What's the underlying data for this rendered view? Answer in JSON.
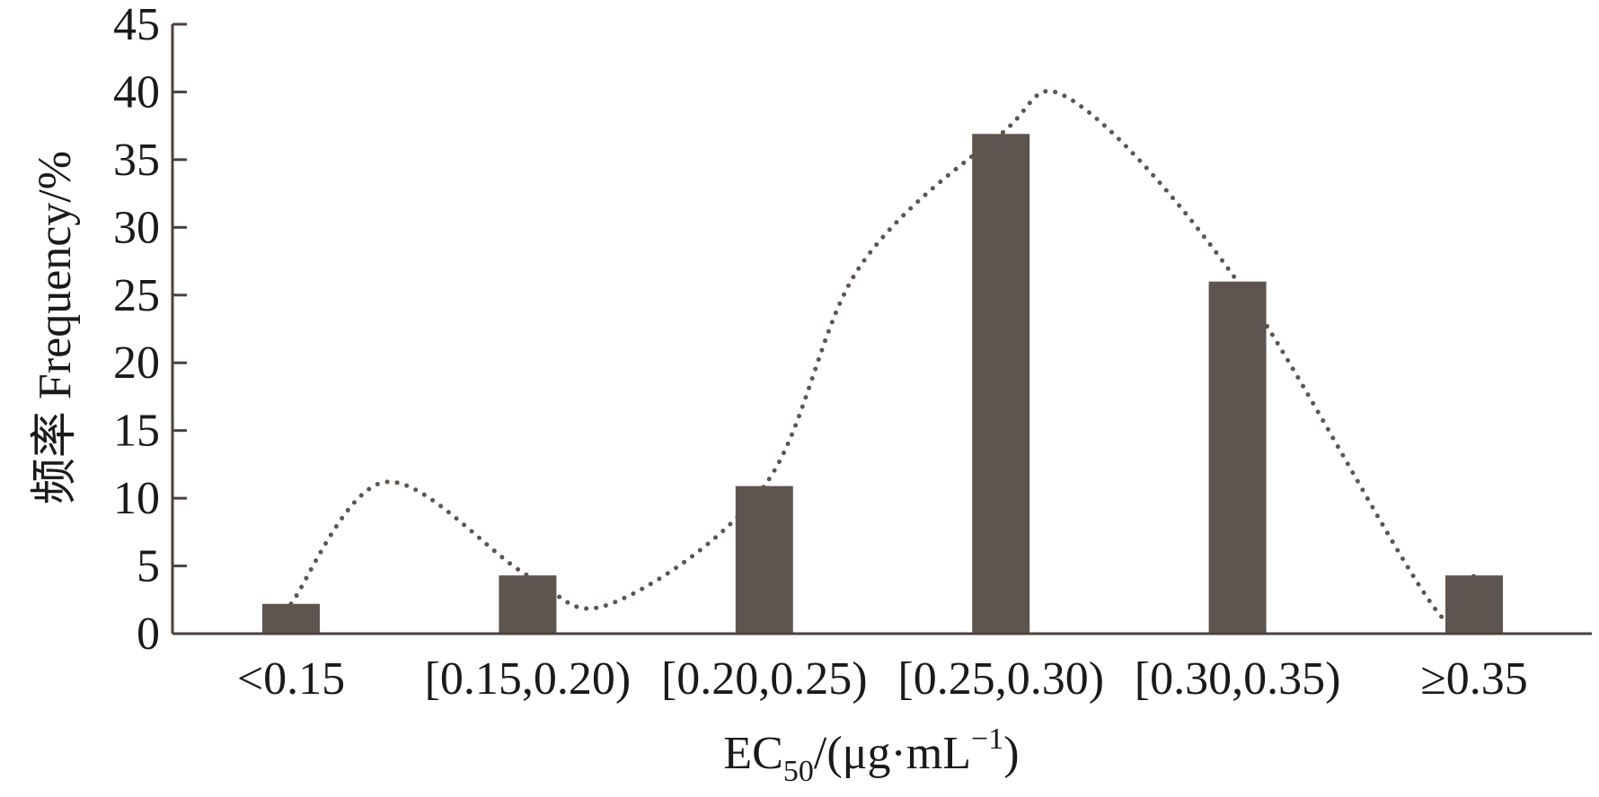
{
  "chart_data": {
    "type": "bar",
    "categories": [
      "<0.15",
      "[0.15,0.20)",
      "[0.20,0.25)",
      "[0.25,0.30)",
      "[0.30,0.35)",
      "≥0.35"
    ],
    "values": [
      2.2,
      4.3,
      10.9,
      36.9,
      26.0,
      4.3
    ],
    "title": "",
    "xlabel": {
      "main": "EC",
      "sub": "50",
      "paren_open": "/(μg·mL",
      "sup": "−1",
      "paren_close": ")"
    },
    "ylabel": "频率 Frequency/%",
    "ylim": [
      0,
      45
    ],
    "yticks": [
      0,
      5,
      10,
      15,
      20,
      25,
      30,
      35,
      40,
      45
    ],
    "grid": false,
    "bar_color": "#5e5550",
    "trend_line": {
      "style": "dotted",
      "color": "#5e5550",
      "x": [
        1,
        1.4,
        2,
        2.35,
        3,
        3.4,
        4,
        4.3,
        5,
        5.85,
        6
      ],
      "y": [
        2.2,
        11.2,
        4.3,
        2.2,
        10.9,
        27,
        36.9,
        39.4,
        26.0,
        1.5,
        4.3
      ]
    }
  }
}
